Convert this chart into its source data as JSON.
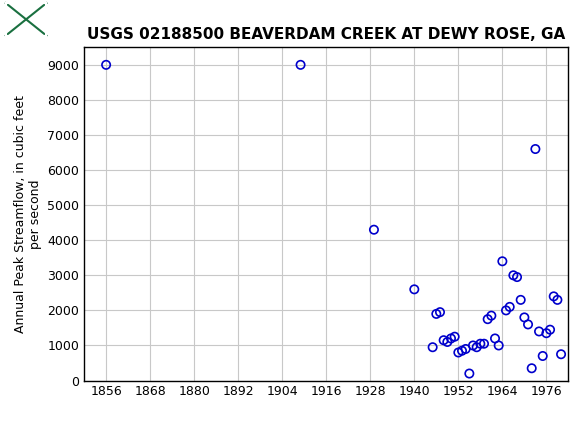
{
  "title": "USGS 02188500 BEAVERDAM CREEK AT DEWY ROSE, GA",
  "ylabel": "Annual Peak Streamflow, in cubic feet\nper second",
  "header_bg_color": "#1a7040",
  "marker_edgecolor": "#0000cc",
  "background_color": "#ffffff",
  "grid_color": "#c8c8c8",
  "xlim": [
    1850,
    1982
  ],
  "ylim": [
    0,
    9500
  ],
  "xticks": [
    1856,
    1868,
    1880,
    1892,
    1904,
    1916,
    1928,
    1940,
    1952,
    1964,
    1976
  ],
  "yticks": [
    0,
    1000,
    2000,
    3000,
    4000,
    5000,
    6000,
    7000,
    8000,
    9000
  ],
  "years": [
    1856,
    1909,
    1929,
    1940,
    1945,
    1946,
    1947,
    1948,
    1949,
    1950,
    1951,
    1952,
    1953,
    1954,
    1955,
    1956,
    1957,
    1958,
    1959,
    1960,
    1961,
    1962,
    1963,
    1964,
    1965,
    1966,
    1967,
    1968,
    1969,
    1970,
    1971,
    1972,
    1973,
    1974,
    1975,
    1976,
    1977,
    1978,
    1979,
    1980
  ],
  "flows": [
    9000,
    9000,
    4300,
    2600,
    950,
    1900,
    1950,
    1150,
    1100,
    1200,
    1250,
    800,
    850,
    900,
    200,
    1000,
    950,
    1050,
    1050,
    1750,
    1850,
    1200,
    1000,
    3400,
    2000,
    2100,
    3000,
    2950,
    2300,
    1800,
    1600,
    350,
    6600,
    1400,
    700,
    1350,
    1450,
    2400,
    2300,
    750
  ],
  "marker_size": 6,
  "marker_lw": 1.2,
  "title_fontsize": 11,
  "tick_fontsize": 9,
  "ylabel_fontsize": 9
}
